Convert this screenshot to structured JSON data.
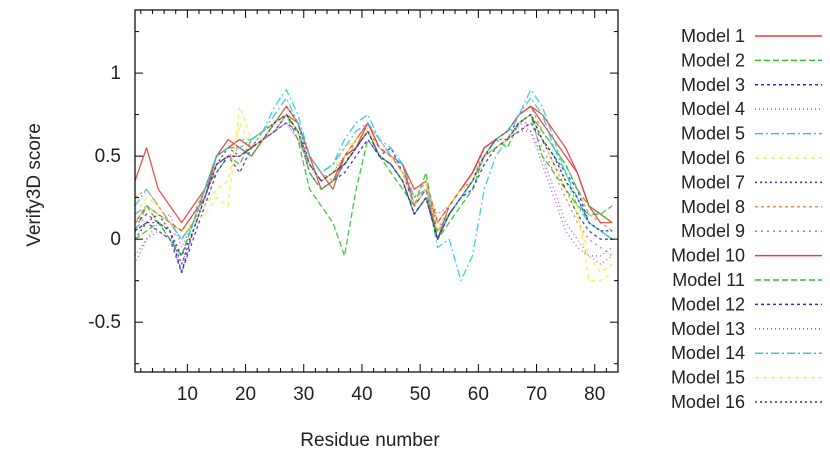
{
  "chart_data": {
    "type": "line",
    "xlabel": "Residue number",
    "ylabel": "Verify3D score",
    "xlim": [
      1,
      84
    ],
    "ylim": [
      -0.8,
      1.38
    ],
    "x_ticks": [
      10,
      20,
      30,
      40,
      50,
      60,
      70,
      80
    ],
    "y_ticks": [
      -0.5,
      0,
      0.5,
      1
    ],
    "y_tick_labels": [
      "-0.5",
      "0",
      "0.5",
      "1"
    ],
    "grid": false,
    "legend_position": "right",
    "x": [
      1,
      3,
      5,
      7,
      9,
      11,
      13,
      15,
      17,
      19,
      21,
      23,
      25,
      27,
      29,
      31,
      33,
      35,
      37,
      39,
      41,
      43,
      45,
      47,
      49,
      51,
      53,
      55,
      57,
      59,
      61,
      63,
      65,
      67,
      69,
      71,
      73,
      75,
      77,
      79,
      81,
      83
    ],
    "series": [
      {
        "name": "Model 1",
        "color": "#e04040",
        "dash": "none",
        "values": [
          0.35,
          0.55,
          0.3,
          0.2,
          0.1,
          0.2,
          0.3,
          0.5,
          0.6,
          0.55,
          0.5,
          0.6,
          0.7,
          0.8,
          0.7,
          0.5,
          0.4,
          0.3,
          0.5,
          0.6,
          0.7,
          0.55,
          0.5,
          0.45,
          0.3,
          0.35,
          0.1,
          0.2,
          0.3,
          0.4,
          0.55,
          0.6,
          0.65,
          0.75,
          0.8,
          0.7,
          0.6,
          0.5,
          0.4,
          0.2,
          0.15,
          0.1
        ]
      },
      {
        "name": "Model 2",
        "color": "#30c030",
        "dash": "6,3",
        "values": [
          0.05,
          0.2,
          0.1,
          0.0,
          -0.1,
          0.1,
          0.3,
          0.4,
          0.5,
          0.45,
          0.6,
          0.65,
          0.7,
          0.75,
          0.6,
          0.3,
          0.2,
          0.1,
          -0.1,
          0.3,
          0.6,
          0.5,
          0.4,
          0.3,
          0.2,
          0.4,
          0.0,
          0.1,
          0.2,
          0.3,
          0.5,
          0.6,
          0.55,
          0.7,
          0.75,
          0.5,
          0.4,
          0.3,
          0.2,
          0.15,
          0.15,
          0.2
        ]
      },
      {
        "name": "Model 3",
        "color": "#3030c0",
        "dash": "3,3",
        "values": [
          0.1,
          0.15,
          0.1,
          0.05,
          -0.2,
          0.0,
          0.2,
          0.4,
          0.5,
          0.4,
          0.55,
          0.6,
          0.65,
          0.7,
          0.65,
          0.4,
          0.3,
          0.35,
          0.4,
          0.5,
          0.6,
          0.5,
          0.55,
          0.4,
          0.2,
          0.3,
          0.05,
          0.15,
          0.25,
          0.3,
          0.45,
          0.55,
          0.6,
          0.65,
          0.7,
          0.6,
          0.5,
          0.4,
          0.3,
          0.1,
          0.05,
          0.0
        ]
      },
      {
        "name": "Model 4",
        "color": "#c040c0",
        "dash": "1,3",
        "values": [
          -0.15,
          0.0,
          0.1,
          0.15,
          -0.05,
          0.1,
          0.3,
          0.45,
          0.5,
          0.55,
          0.5,
          0.6,
          0.65,
          0.7,
          0.6,
          0.45,
          0.35,
          0.4,
          0.5,
          0.55,
          0.7,
          0.6,
          0.5,
          0.4,
          0.25,
          0.3,
          0.15,
          0.2,
          0.3,
          0.4,
          0.5,
          0.55,
          0.6,
          0.7,
          0.65,
          0.5,
          0.3,
          0.1,
          0.0,
          -0.1,
          -0.15,
          -0.1
        ]
      },
      {
        "name": "Model 5",
        "color": "#30c8e0",
        "dash": "8,3,2,3",
        "values": [
          0.2,
          0.3,
          0.2,
          0.1,
          0.0,
          0.1,
          0.3,
          0.5,
          0.55,
          0.6,
          0.6,
          0.65,
          0.8,
          0.9,
          0.75,
          0.5,
          0.4,
          0.45,
          0.6,
          0.7,
          0.75,
          0.6,
          0.55,
          0.45,
          0.2,
          0.3,
          -0.05,
          0.0,
          -0.25,
          -0.1,
          0.3,
          0.5,
          0.6,
          0.75,
          0.9,
          0.8,
          0.6,
          0.4,
          0.2,
          0.1,
          0.05,
          0.0
        ]
      },
      {
        "name": "Model 6",
        "color": "#f0f040",
        "dash": "4,4",
        "values": [
          0.15,
          0.25,
          0.2,
          0.1,
          0.0,
          0.1,
          0.15,
          0.25,
          0.2,
          0.8,
          0.6,
          0.6,
          0.7,
          0.75,
          0.65,
          0.45,
          0.35,
          0.4,
          0.55,
          0.6,
          0.65,
          0.55,
          0.5,
          0.4,
          0.25,
          0.35,
          0.1,
          0.2,
          0.3,
          0.35,
          0.5,
          0.55,
          0.6,
          0.7,
          0.75,
          0.6,
          0.45,
          0.35,
          0.2,
          -0.25,
          -0.25,
          -0.2
        ]
      },
      {
        "name": "Model 7",
        "color": "#3a3a80",
        "dash": "2,3",
        "values": [
          0.0,
          0.1,
          0.15,
          0.05,
          -0.15,
          0.05,
          0.25,
          0.45,
          0.55,
          0.5,
          0.55,
          0.65,
          0.7,
          0.8,
          0.7,
          0.45,
          0.35,
          0.4,
          0.45,
          0.55,
          0.65,
          0.5,
          0.45,
          0.35,
          0.15,
          0.25,
          0.0,
          0.15,
          0.25,
          0.35,
          0.5,
          0.6,
          0.65,
          0.7,
          0.75,
          0.6,
          0.5,
          0.35,
          0.25,
          0.1,
          0.05,
          0.05
        ]
      },
      {
        "name": "Model 8",
        "color": "#e09050",
        "dash": "3,3",
        "values": [
          0.25,
          0.3,
          0.2,
          0.1,
          0.05,
          0.15,
          0.3,
          0.5,
          0.55,
          0.6,
          0.55,
          0.65,
          0.7,
          0.8,
          0.7,
          0.5,
          0.4,
          0.35,
          0.45,
          0.6,
          0.7,
          0.55,
          0.5,
          0.4,
          0.25,
          0.35,
          0.05,
          0.15,
          0.25,
          0.35,
          0.55,
          0.6,
          0.65,
          0.75,
          0.8,
          0.65,
          0.55,
          0.45,
          0.3,
          0.15,
          0.1,
          0.05
        ]
      },
      {
        "name": "Model 9",
        "color": "#e07070",
        "dash": "2,4",
        "values": [
          0.05,
          0.15,
          0.1,
          0.05,
          0.0,
          0.1,
          0.25,
          0.45,
          0.5,
          0.5,
          0.55,
          0.6,
          0.65,
          0.75,
          0.65,
          0.45,
          0.35,
          0.4,
          0.5,
          0.55,
          0.65,
          0.55,
          0.5,
          0.4,
          0.2,
          0.3,
          0.05,
          0.2,
          0.3,
          0.35,
          0.5,
          0.55,
          0.6,
          0.7,
          0.7,
          0.55,
          0.4,
          0.25,
          0.1,
          0.0,
          -0.05,
          -0.1
        ]
      },
      {
        "name": "Model 10",
        "color": "#e04040",
        "dash": "none",
        "values": [
          0.1,
          0.2,
          0.15,
          0.1,
          0.05,
          0.15,
          0.25,
          0.5,
          0.55,
          0.6,
          0.55,
          0.6,
          0.7,
          0.75,
          0.7,
          0.5,
          0.3,
          0.35,
          0.5,
          0.55,
          0.7,
          0.55,
          0.5,
          0.45,
          0.2,
          0.3,
          0.0,
          0.2,
          0.3,
          0.4,
          0.55,
          0.6,
          0.65,
          0.75,
          0.8,
          0.75,
          0.65,
          0.55,
          0.4,
          0.2,
          0.1,
          0.1
        ]
      },
      {
        "name": "Model 11",
        "color": "#30c030",
        "dash": "6,3",
        "values": [
          0.0,
          0.05,
          0.1,
          0.0,
          -0.1,
          0.1,
          0.3,
          0.5,
          0.55,
          0.55,
          0.5,
          0.6,
          0.7,
          0.75,
          0.65,
          0.4,
          0.3,
          0.35,
          0.45,
          0.55,
          0.65,
          0.5,
          0.45,
          0.35,
          0.15,
          0.25,
          0.0,
          0.15,
          0.25,
          0.35,
          0.5,
          0.55,
          0.6,
          0.7,
          0.75,
          0.65,
          0.55,
          0.45,
          0.3,
          0.2,
          0.15,
          0.1
        ]
      },
      {
        "name": "Model 12",
        "color": "#3030c0",
        "dash": "3,3",
        "values": [
          0.05,
          0.1,
          0.05,
          0.0,
          -0.2,
          0.05,
          0.25,
          0.45,
          0.5,
          0.5,
          0.55,
          0.6,
          0.65,
          0.75,
          0.65,
          0.45,
          0.35,
          0.4,
          0.45,
          0.55,
          0.65,
          0.5,
          0.45,
          0.35,
          0.15,
          0.25,
          0.0,
          0.15,
          0.25,
          0.35,
          0.5,
          0.55,
          0.6,
          0.7,
          0.75,
          0.6,
          0.45,
          0.3,
          0.15,
          0.05,
          0.0,
          0.0
        ]
      },
      {
        "name": "Model 13",
        "color": "#c040c0",
        "dash": "1,3",
        "values": [
          -0.1,
          0.0,
          0.05,
          0.0,
          -0.15,
          0.05,
          0.25,
          0.45,
          0.5,
          0.5,
          0.55,
          0.6,
          0.65,
          0.7,
          0.6,
          0.45,
          0.35,
          0.4,
          0.5,
          0.55,
          0.65,
          0.55,
          0.5,
          0.4,
          0.2,
          0.3,
          0.1,
          0.2,
          0.3,
          0.35,
          0.5,
          0.55,
          0.6,
          0.65,
          0.65,
          0.45,
          0.25,
          0.05,
          -0.05,
          -0.1,
          -0.1,
          -0.05
        ]
      },
      {
        "name": "Model 14",
        "color": "#30c8e0",
        "dash": "8,3,2,3",
        "values": [
          0.15,
          0.2,
          0.15,
          0.1,
          0.0,
          0.1,
          0.3,
          0.5,
          0.55,
          0.55,
          0.6,
          0.65,
          0.75,
          0.85,
          0.7,
          0.5,
          0.4,
          0.45,
          0.55,
          0.65,
          0.7,
          0.6,
          0.5,
          0.45,
          0.25,
          0.3,
          0.05,
          0.15,
          0.25,
          0.35,
          0.5,
          0.6,
          0.65,
          0.75,
          0.85,
          0.75,
          0.55,
          0.4,
          0.25,
          0.1,
          0.05,
          0.0
        ]
      },
      {
        "name": "Model 15",
        "color": "#f0f040",
        "dash": "4,4",
        "values": [
          0.1,
          0.2,
          0.15,
          0.1,
          0.05,
          0.1,
          0.2,
          0.3,
          0.35,
          0.7,
          0.55,
          0.6,
          0.7,
          0.75,
          0.65,
          0.45,
          0.35,
          0.4,
          0.5,
          0.6,
          0.65,
          0.55,
          0.5,
          0.4,
          0.2,
          0.3,
          0.05,
          0.2,
          0.3,
          0.35,
          0.5,
          0.55,
          0.6,
          0.7,
          0.75,
          0.6,
          0.45,
          0.3,
          0.15,
          -0.1,
          -0.2,
          -0.15
        ]
      },
      {
        "name": "Model 16",
        "color": "#3a3a80",
        "dash": "2,3",
        "values": [
          0.05,
          0.1,
          0.1,
          0.05,
          -0.1,
          0.05,
          0.25,
          0.45,
          0.5,
          0.5,
          0.55,
          0.6,
          0.7,
          0.75,
          0.65,
          0.45,
          0.35,
          0.4,
          0.45,
          0.55,
          0.65,
          0.5,
          0.45,
          0.35,
          0.15,
          0.25,
          0.0,
          0.15,
          0.25,
          0.35,
          0.5,
          0.6,
          0.6,
          0.7,
          0.75,
          0.6,
          0.5,
          0.35,
          0.25,
          0.1,
          0.05,
          0.05
        ]
      }
    ]
  }
}
